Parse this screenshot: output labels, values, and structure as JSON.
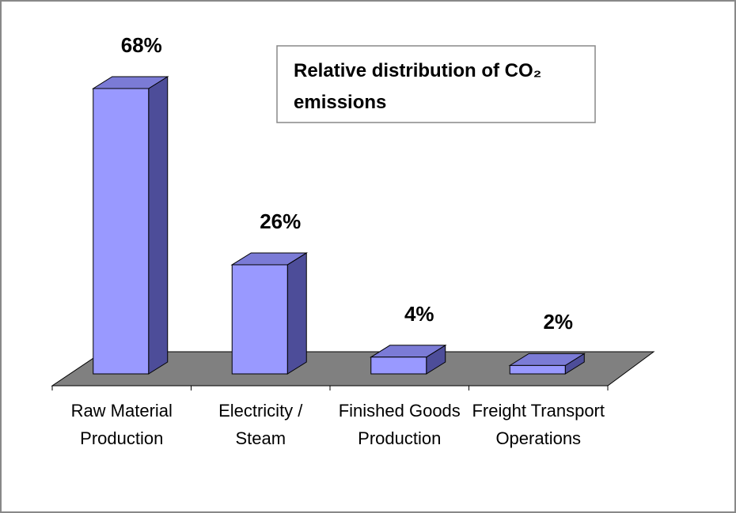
{
  "chart_data": {
    "type": "bar3d",
    "title": "Relative distribution of CO₂ emissions",
    "categories": [
      "Raw Material Production",
      "Electricity / Steam",
      "Finished Goods Production",
      "Freight Transport Operations"
    ],
    "values": [
      68,
      26,
      4,
      2
    ],
    "value_labels": [
      "68%",
      "26%",
      "4%",
      "2%"
    ],
    "color": "#9999ff"
  }
}
